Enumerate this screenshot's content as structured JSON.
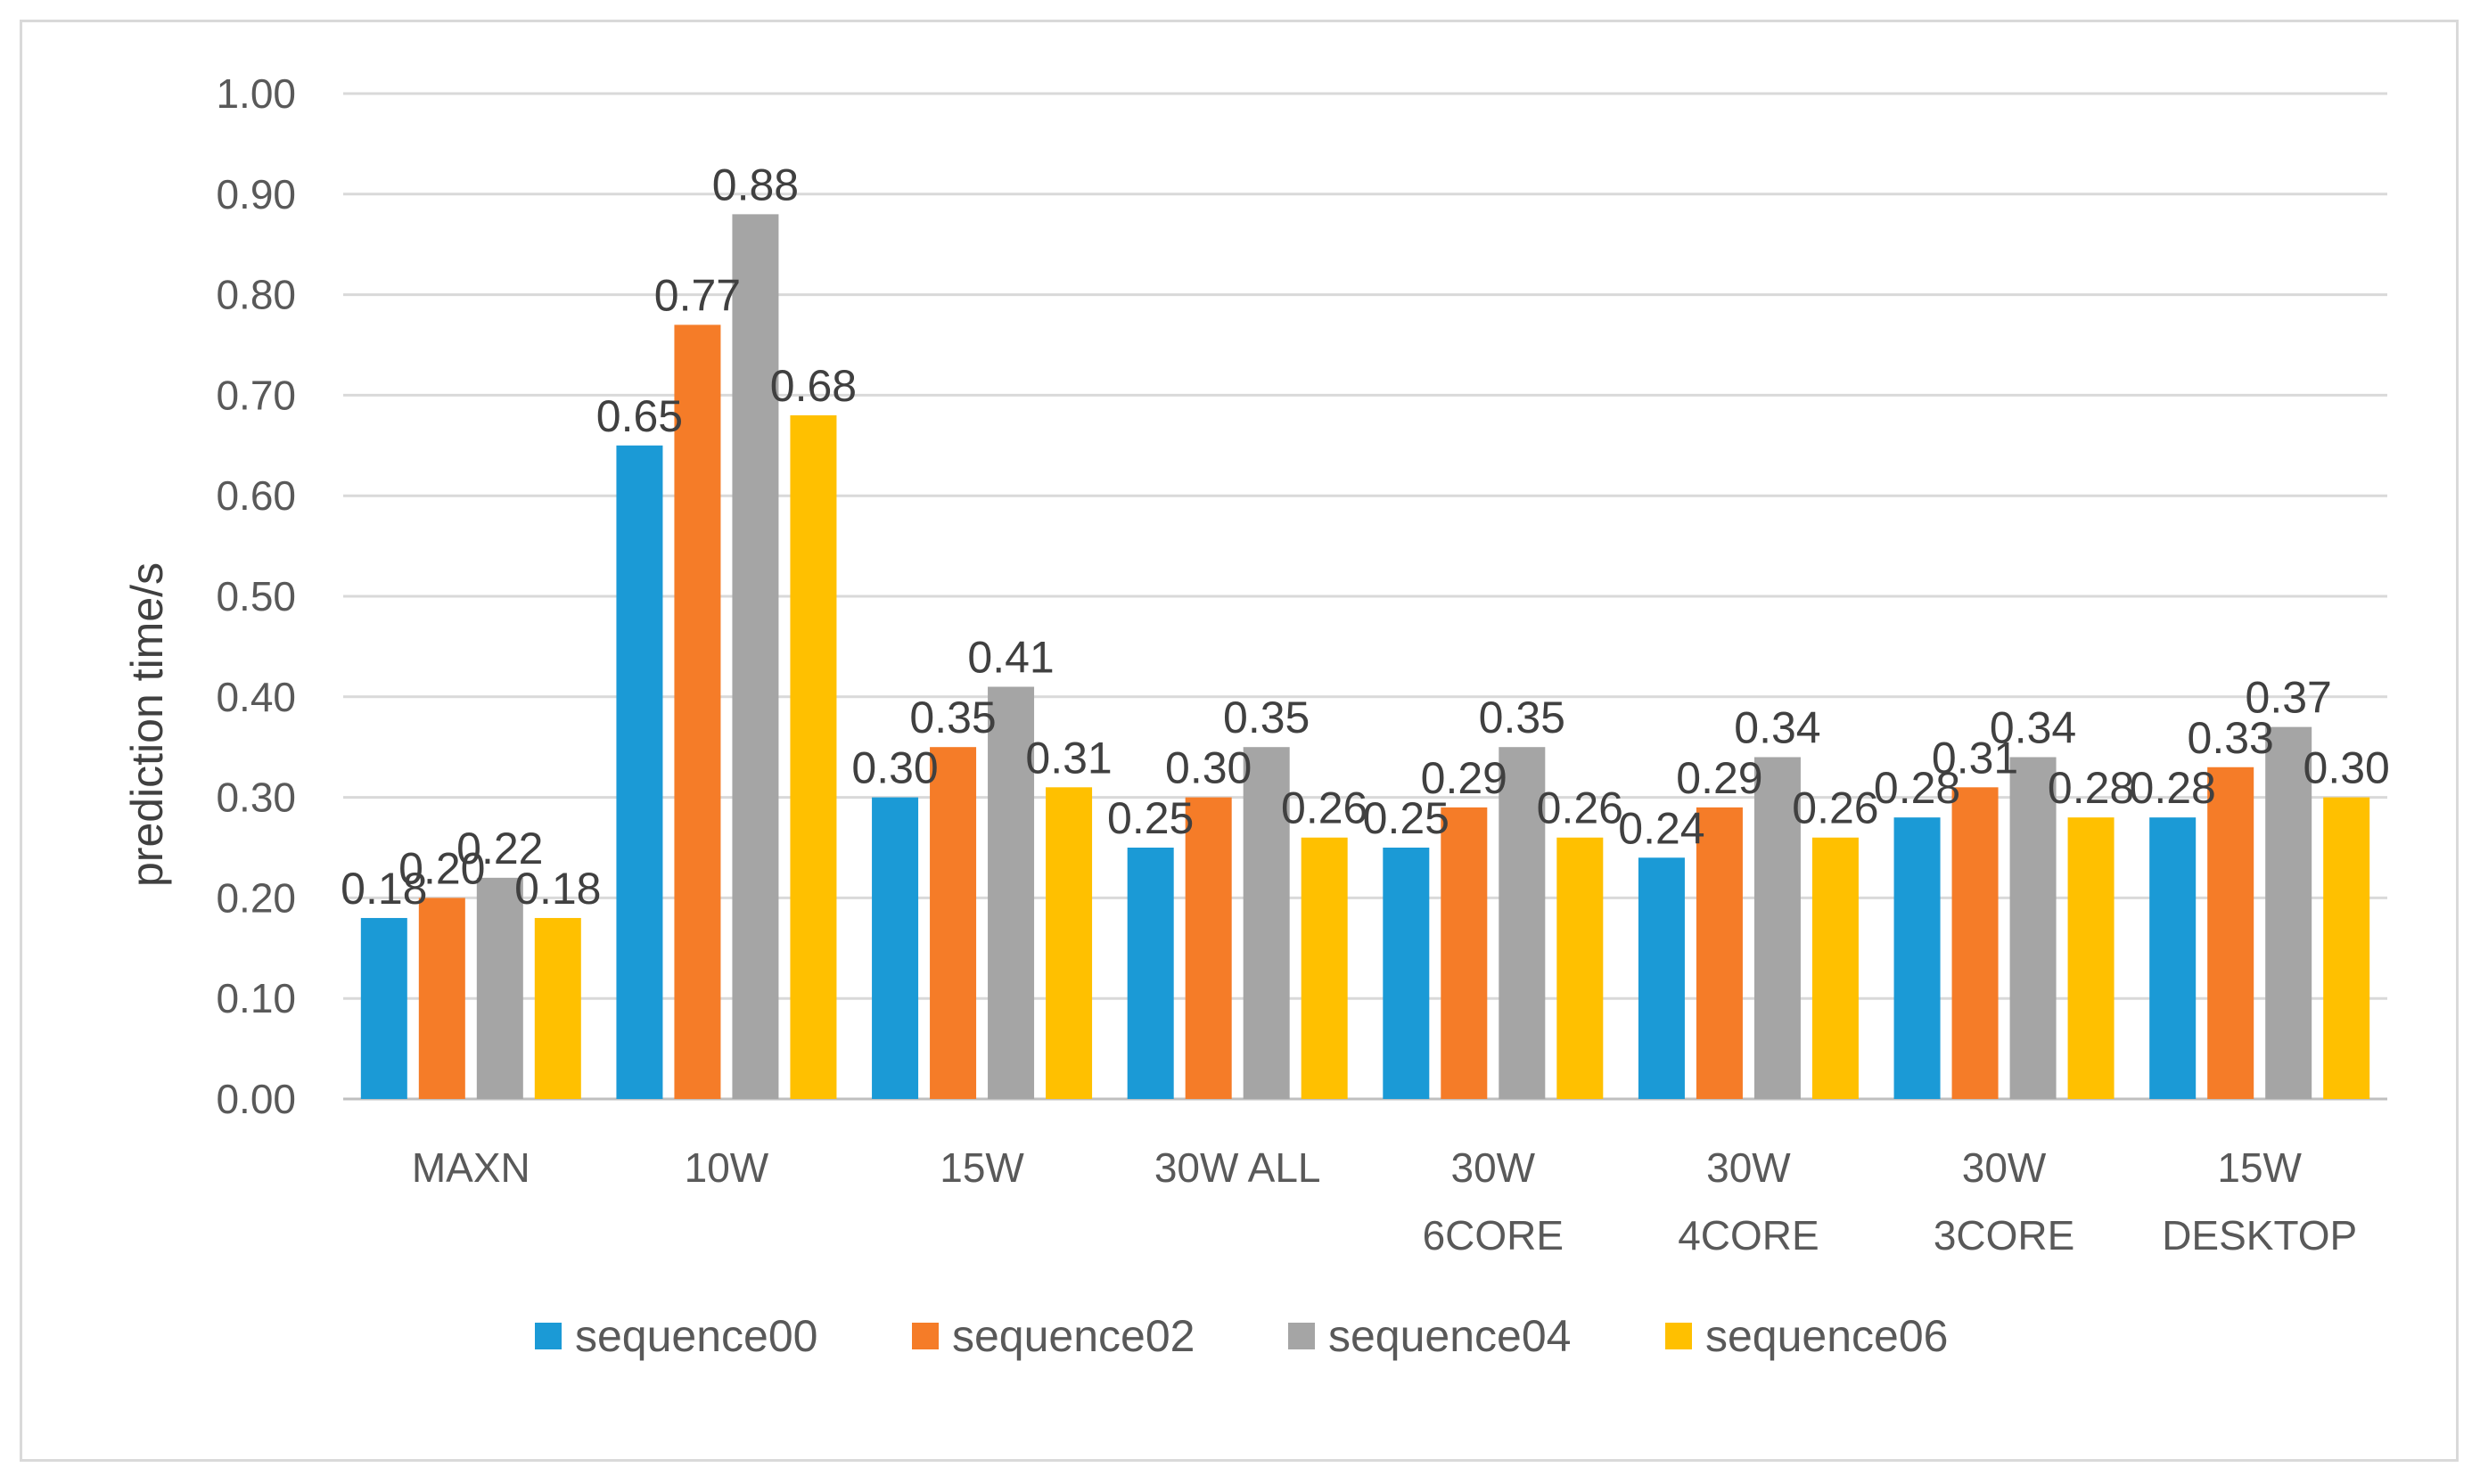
{
  "chart_data": {
    "type": "bar",
    "title": "",
    "xlabel": "",
    "ylabel": "prediction time/s",
    "ylim": [
      0,
      1.0
    ],
    "ytick_step": 0.1,
    "ytick_decimals": 2,
    "grid": true,
    "legend_position": "bottom",
    "categories": [
      [
        "MAXN"
      ],
      [
        "10W"
      ],
      [
        "15W"
      ],
      [
        "30W ALL"
      ],
      [
        "30W",
        "6CORE"
      ],
      [
        "30W",
        "4CORE"
      ],
      [
        "30W",
        "3CORE"
      ],
      [
        "15W",
        "DESKTOP"
      ]
    ],
    "series": [
      {
        "name": "sequence00",
        "color": "#1b9ad6",
        "values": [
          0.18,
          0.65,
          0.3,
          0.25,
          0.25,
          0.24,
          0.28,
          0.28
        ]
      },
      {
        "name": "sequence02",
        "color": "#f57c28",
        "values": [
          0.2,
          0.77,
          0.35,
          0.3,
          0.29,
          0.29,
          0.31,
          0.33
        ]
      },
      {
        "name": "sequence04",
        "color": "#a5a5a5",
        "values": [
          0.22,
          0.88,
          0.41,
          0.35,
          0.35,
          0.34,
          0.34,
          0.37
        ]
      },
      {
        "name": "sequence06",
        "color": "#ffc000",
        "values": [
          0.18,
          0.68,
          0.31,
          0.26,
          0.26,
          0.26,
          0.28,
          0.3
        ]
      }
    ]
  }
}
